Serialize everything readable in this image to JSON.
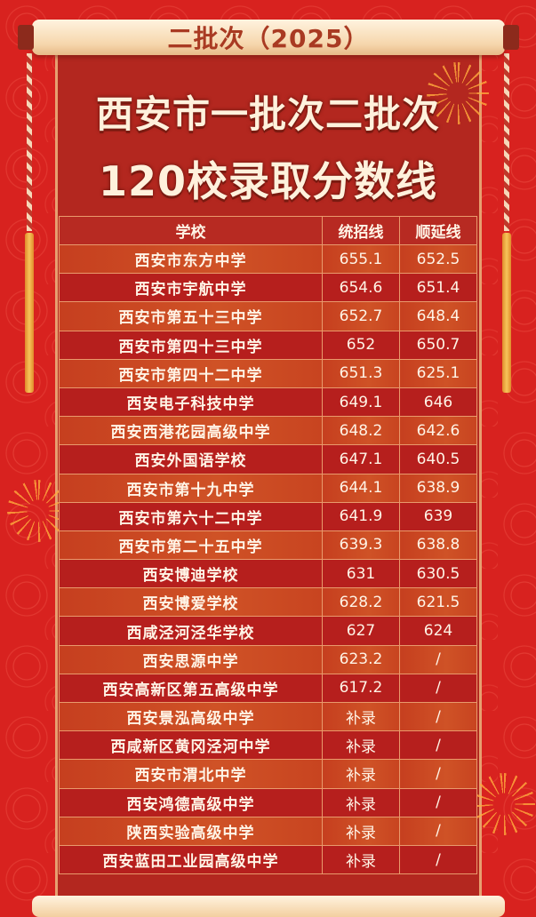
{
  "banner": {
    "label": "二批次（2025）"
  },
  "title": {
    "line1": "西安市一批次二批次",
    "line2": "120校录取分数线"
  },
  "colors": {
    "panel": "#b3271f",
    "row_odd": "#c94a22",
    "row_even": "#b61f1d",
    "title_text": "#fff1dc",
    "banner_text": "#a93a22"
  },
  "table": {
    "headers": [
      "学校",
      "统招线",
      "顺延线"
    ],
    "rows": [
      {
        "school": "西安市东方中学",
        "tongzhao": "655.1",
        "shunyan": "652.5"
      },
      {
        "school": "西安市宇航中学",
        "tongzhao": "654.6",
        "shunyan": "651.4"
      },
      {
        "school": "西安市第五十三中学",
        "tongzhao": "652.7",
        "shunyan": "648.4"
      },
      {
        "school": "西安市第四十三中学",
        "tongzhao": "652",
        "shunyan": "650.7"
      },
      {
        "school": "西安市第四十二中学",
        "tongzhao": "651.3",
        "shunyan": "625.1"
      },
      {
        "school": "西安电子科技中学",
        "tongzhao": "649.1",
        "shunyan": "646"
      },
      {
        "school": "西安西港花园高级中学",
        "tongzhao": "648.2",
        "shunyan": "642.6"
      },
      {
        "school": "西安外国语学校",
        "tongzhao": "647.1",
        "shunyan": "640.5"
      },
      {
        "school": "西安市第十九中学",
        "tongzhao": "644.1",
        "shunyan": "638.9"
      },
      {
        "school": "西安市第六十二中学",
        "tongzhao": "641.9",
        "shunyan": "639"
      },
      {
        "school": "西安市第二十五中学",
        "tongzhao": "639.3",
        "shunyan": "638.8"
      },
      {
        "school": "西安博迪学校",
        "tongzhao": "631",
        "shunyan": "630.5"
      },
      {
        "school": "西安博爱学校",
        "tongzhao": "628.2",
        "shunyan": "621.5"
      },
      {
        "school": "西咸泾河泾华学校",
        "tongzhao": "627",
        "shunyan": "624"
      },
      {
        "school": "西安思源中学",
        "tongzhao": "623.2",
        "shunyan": "/"
      },
      {
        "school": "西安高新区第五高级中学",
        "tongzhao": "617.2",
        "shunyan": "/"
      },
      {
        "school": "西安景泓高级中学",
        "tongzhao": "补录",
        "shunyan": "/"
      },
      {
        "school": "西咸新区黄冈泾河中学",
        "tongzhao": "补录",
        "shunyan": "/"
      },
      {
        "school": "西安市渭北中学",
        "tongzhao": "补录",
        "shunyan": "/"
      },
      {
        "school": "西安鸿德高级中学",
        "tongzhao": "补录",
        "shunyan": "/"
      },
      {
        "school": "陕西实验高级中学",
        "tongzhao": "补录",
        "shunyan": "/"
      },
      {
        "school": "西安蓝田工业园高级中学",
        "tongzhao": "补录",
        "shunyan": "/"
      }
    ]
  }
}
